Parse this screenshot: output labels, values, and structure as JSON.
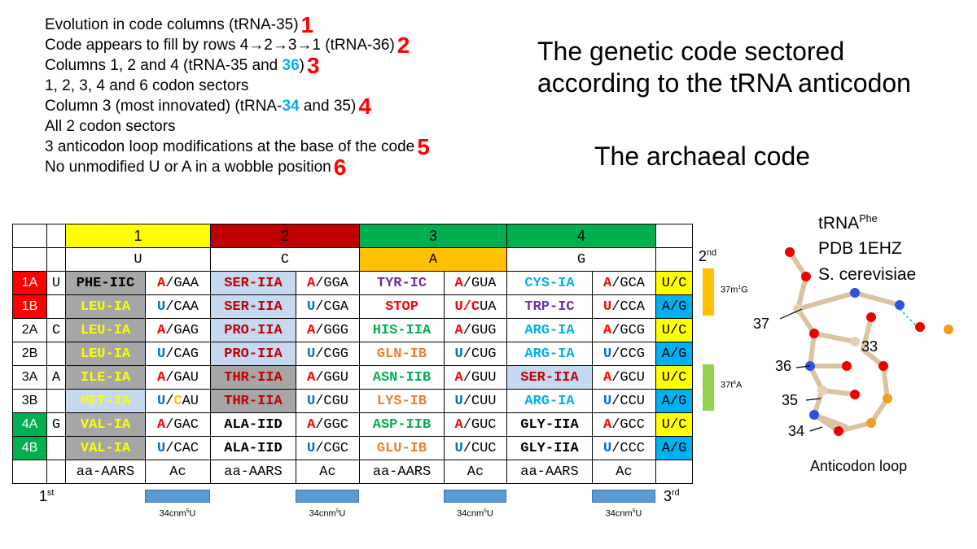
{
  "notes": [
    {
      "text": [
        "Evolution in code columns (tRNA-35)"
      ],
      "marker": "1"
    },
    {
      "text": [
        "Code appears to fill by rows 4→2→3→1 (tRNA-36)"
      ],
      "marker": "2"
    },
    {
      "text": [
        "Columns 1, 2 and 4 (tRNA-35 and ",
        "36",
        ")"
      ],
      "marker": "3"
    },
    {
      "text": [
        "1, 2, 3, 4 and 6 codon sectors"
      ]
    },
    {
      "text": [
        "Column 3 (most innovated) (tRNA-",
        "34",
        " and 35)"
      ],
      "marker": "4"
    },
    {
      "text": [
        "All 2 codon sectors"
      ]
    },
    {
      "text": [
        "3 anticodon loop modifications at the base of the code"
      ],
      "marker": "5"
    },
    {
      "text": [
        "No unmodified U or A in a wobble position"
      ],
      "marker": "6"
    }
  ],
  "title": [
    "The genetic code sectored",
    "according to the tRNA anticodon"
  ],
  "subtitle": "The archaeal code",
  "table": {
    "columns": [
      {
        "label": "1",
        "color": "#ffff00",
        "base": "U"
      },
      {
        "label": "2",
        "color": "#c00000",
        "base": "C"
      },
      {
        "label": "3",
        "color": "#00b050",
        "base": "A",
        "base_color": "#ffc000"
      },
      {
        "label": "4",
        "color": "#00b050",
        "base": "G"
      }
    ],
    "rows": [
      {
        "label": "1A",
        "label_bg": "#ff0000",
        "first_base": "U",
        "third": "U/C",
        "third_bg": "#ffff00",
        "cells": [
          {
            "aars": "PHE-IIC",
            "color": "#000000",
            "bg": "#a6a6a6",
            "ac": [
              {
                "t": "A",
                "c": "#ff0000"
              },
              {
                "t": "/GAA"
              }
            ]
          },
          {
            "aars": "SER-IIA",
            "color": "#c00000",
            "bg": "#c5d9f1",
            "ac": [
              {
                "t": "A",
                "c": "#ff0000"
              },
              {
                "t": "/GGA"
              }
            ]
          },
          {
            "aars": "TYR-IC",
            "color": "#7030a0",
            "ac": [
              {
                "t": "A",
                "c": "#ff0000"
              },
              {
                "t": "/GUA"
              }
            ]
          },
          {
            "aars": "CYS-IA",
            "color": "#00b0f0",
            "ac": [
              {
                "t": "A",
                "c": "#ff0000"
              },
              {
                "t": "/GCA"
              }
            ]
          }
        ]
      },
      {
        "label": "1B",
        "label_bg": "#ff0000",
        "third": "A/G",
        "third_bg": "#00b0f0",
        "cells": [
          {
            "aars": "LEU-IA",
            "color": "#ffff00",
            "bg": "#a6a6a6",
            "ac": [
              {
                "t": "U",
                "c": "#0070c0"
              },
              {
                "t": "/CAA"
              }
            ]
          },
          {
            "aars": "SER-IIA",
            "color": "#c00000",
            "bg": "#c5d9f1",
            "ac": [
              {
                "t": "U",
                "c": "#0070c0"
              },
              {
                "t": "/CGA"
              }
            ]
          },
          {
            "aars": "STOP",
            "color": "#ff0000",
            "ac": [
              {
                "t": "U/C",
                "c": "#ff0000"
              },
              {
                "t": "UA"
              }
            ]
          },
          {
            "aars": "TRP-IC",
            "color": "#7030a0",
            "ac": [
              {
                "t": "U",
                "c": "#ff0000"
              },
              {
                "t": "/CCA"
              }
            ]
          }
        ]
      },
      {
        "label": "2A",
        "first_base": "C",
        "third": "U/C",
        "third_bg": "#ffff00",
        "cells": [
          {
            "aars": "LEU-IA",
            "color": "#ffff00",
            "bg": "#a6a6a6",
            "ac": [
              {
                "t": "A",
                "c": "#ff0000"
              },
              {
                "t": "/GAG"
              }
            ]
          },
          {
            "aars": "PRO-IIA",
            "color": "#c00000",
            "bg": "#c5d9f1",
            "ac": [
              {
                "t": "A",
                "c": "#ff0000"
              },
              {
                "t": "/GGG"
              }
            ]
          },
          {
            "aars": "HIS-IIA",
            "color": "#00b050",
            "ac": [
              {
                "t": "A",
                "c": "#ff0000"
              },
              {
                "t": "/GUG"
              }
            ]
          },
          {
            "aars": "ARG-IA",
            "color": "#00b0f0",
            "ac": [
              {
                "t": "A",
                "c": "#ff0000"
              },
              {
                "t": "/GCG"
              }
            ]
          }
        ]
      },
      {
        "label": "2B",
        "third": "A/G",
        "third_bg": "#00b0f0",
        "cells": [
          {
            "aars": "LEU-IA",
            "color": "#ffff00",
            "bg": "#a6a6a6",
            "ac": [
              {
                "t": "U",
                "c": "#0070c0"
              },
              {
                "t": "/CAG"
              }
            ]
          },
          {
            "aars": "PRO-IIA",
            "color": "#c00000",
            "bg": "#c5d9f1",
            "ac": [
              {
                "t": "U",
                "c": "#0070c0"
              },
              {
                "t": "/CGG"
              }
            ]
          },
          {
            "aars": "GLN-IB",
            "color": "#ed7d31",
            "ac": [
              {
                "t": "U",
                "c": "#0070c0"
              },
              {
                "t": "/CUG"
              }
            ]
          },
          {
            "aars": "ARG-IA",
            "color": "#00b0f0",
            "ac": [
              {
                "t": "U",
                "c": "#0070c0"
              },
              {
                "t": "/CCG"
              }
            ]
          }
        ]
      },
      {
        "label": "3A",
        "first_base": "A",
        "third": "U/C",
        "third_bg": "#ffff00",
        "cells": [
          {
            "aars": "ILE-IA",
            "color": "#ffff00",
            "bg": "#a6a6a6",
            "ac": [
              {
                "t": "A",
                "c": "#ff0000"
              },
              {
                "t": "/GAU"
              }
            ]
          },
          {
            "aars": "THR-IIA",
            "color": "#c00000",
            "bg": "#a6a6a6",
            "ac": [
              {
                "t": "A",
                "c": "#ff0000"
              },
              {
                "t": "/GGU"
              }
            ]
          },
          {
            "aars": "ASN-IIB",
            "color": "#00b050",
            "ac": [
              {
                "t": "A",
                "c": "#ff0000"
              },
              {
                "t": "/GUU"
              }
            ]
          },
          {
            "aars": "SER-IIA",
            "color": "#c00000",
            "bg": "#c5d9f1",
            "ac": [
              {
                "t": "A",
                "c": "#ff0000"
              },
              {
                "t": "/GCU"
              }
            ]
          }
        ]
      },
      {
        "label": "3B",
        "third": "A/G",
        "third_bg": "#00b0f0",
        "cells": [
          {
            "aars": "MET-IA",
            "color": "#ffff00",
            "bg": "#c5d9f1",
            "ac": [
              {
                "t": "U",
                "c": "#0070c0"
              },
              {
                "t": "/"
              },
              {
                "t": "C",
                "c": "#ffc000"
              },
              {
                "t": "AU"
              }
            ]
          },
          {
            "aars": "THR-IIA",
            "color": "#c00000",
            "bg": "#a6a6a6",
            "ac": [
              {
                "t": "U",
                "c": "#0070c0"
              },
              {
                "t": "/CGU"
              }
            ]
          },
          {
            "aars": "LYS-IB",
            "color": "#ed7d31",
            "ac": [
              {
                "t": "U",
                "c": "#0070c0"
              },
              {
                "t": "/CUU"
              }
            ]
          },
          {
            "aars": "ARG-IA",
            "color": "#00b0f0",
            "ac": [
              {
                "t": "U",
                "c": "#0070c0"
              },
              {
                "t": "/CCU"
              }
            ]
          }
        ]
      },
      {
        "label": "4A",
        "label_bg": "#00b050",
        "first_base": "G",
        "third": "U/C",
        "third_bg": "#ffff00",
        "cells": [
          {
            "aars": "VAL-IA",
            "color": "#ffff00",
            "bg": "#a6a6a6",
            "ac": [
              {
                "t": "A",
                "c": "#ff0000"
              },
              {
                "t": "/GAC"
              }
            ]
          },
          {
            "aars": "ALA-IID",
            "color": "#000000",
            "ac": [
              {
                "t": "A",
                "c": "#ff0000"
              },
              {
                "t": "/GGC"
              }
            ]
          },
          {
            "aars": "ASP-IIB",
            "color": "#00b050",
            "ac": [
              {
                "t": "A",
                "c": "#ff0000"
              },
              {
                "t": "/GUC"
              }
            ]
          },
          {
            "aars": "GLY-IIA",
            "color": "#000000",
            "ac": [
              {
                "t": "A",
                "c": "#ff0000"
              },
              {
                "t": "/GCC"
              }
            ]
          }
        ]
      },
      {
        "label": "4B",
        "label_bg": "#00b050",
        "third": "A/G",
        "third_bg": "#00b0f0",
        "cells": [
          {
            "aars": "VAL-IA",
            "color": "#ffff00",
            "bg": "#a6a6a6",
            "ac": [
              {
                "t": "U",
                "c": "#0070c0"
              },
              {
                "t": "/CAC"
              }
            ]
          },
          {
            "aars": "ALA-IID",
            "color": "#000000",
            "ac": [
              {
                "t": "U",
                "c": "#0070c0"
              },
              {
                "t": "/CGC"
              }
            ]
          },
          {
            "aars": "GLU-IB",
            "color": "#ed7d31",
            "ac": [
              {
                "t": "U",
                "c": "#0070c0"
              },
              {
                "t": "/CUC"
              }
            ]
          },
          {
            "aars": "GLY-IIA",
            "color": "#000000",
            "ac": [
              {
                "t": "U",
                "c": "#0070c0"
              },
              {
                "t": "/CCC"
              }
            ]
          }
        ]
      }
    ],
    "footer": [
      "aa-AARS",
      "Ac",
      "aa-AARS",
      "Ac",
      "aa-AARS",
      "Ac",
      "aa-AARS",
      "Ac"
    ]
  },
  "side": {
    "second": [
      "2",
      "nd"
    ],
    "m1g": [
      "37m",
      "1",
      "G"
    ],
    "t6a": [
      "37t",
      "6",
      "A"
    ],
    "first": [
      "1",
      "st"
    ],
    "third": [
      "3",
      "rd"
    ],
    "mods": [
      [
        "34cnm",
        "5",
        "U"
      ],
      [
        "34cnm",
        "5",
        "U"
      ],
      [
        "34cnm",
        "5",
        "U"
      ],
      [
        "34cnm",
        "5",
        "U"
      ]
    ]
  },
  "structure": {
    "name": [
      "tRNA",
      "Phe"
    ],
    "pdb": "PDB 1EHZ",
    "organism": "S. cerevisiae",
    "positions": [
      "37",
      "36",
      "35",
      "34",
      "33"
    ],
    "caption": "Anticodon loop"
  }
}
